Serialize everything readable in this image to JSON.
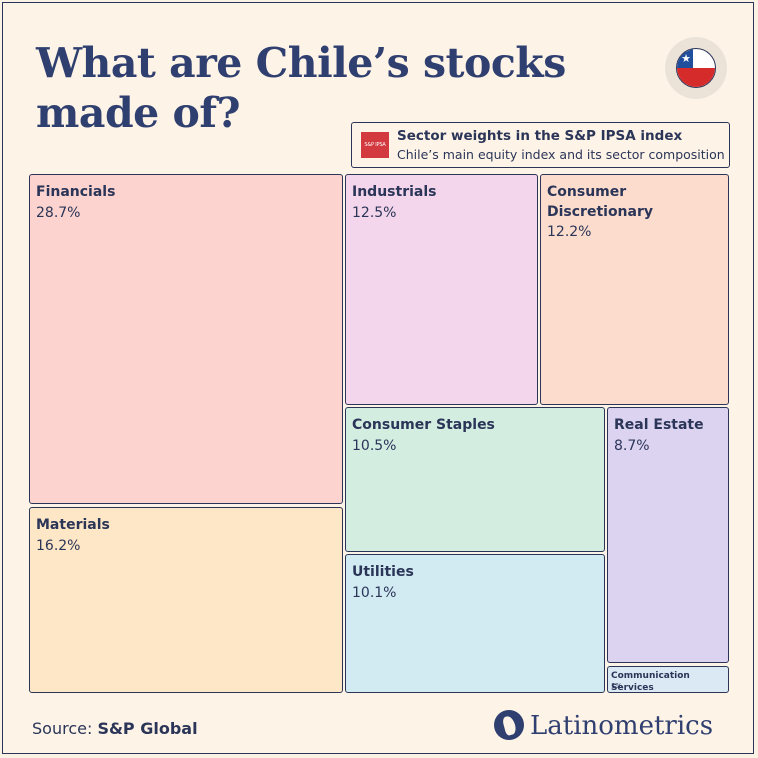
{
  "header": {
    "title": "What are Chile’s stocks made of?",
    "flag": "chile-flag-icon"
  },
  "legend": {
    "logo_text": "S&P IPSA",
    "title": "Sector weights in the S&P IPSA index",
    "subtitle": "Chile’s main equity index and its sector composition"
  },
  "chart_data": {
    "type": "treemap",
    "title": "What are Chile’s stocks made of?",
    "subtitle": "Sector weights in the S&P IPSA index",
    "unit": "%",
    "categories": [
      "Financials",
      "Materials",
      "Industrials",
      "Consumer Discretionary",
      "Consumer Staples",
      "Utilities",
      "Real Estate",
      "Communication Services"
    ],
    "values": [
      28.7,
      16.2,
      12.5,
      12.2,
      10.5,
      10.1,
      8.7,
      1
    ],
    "labels": [
      "28.7%",
      "16.2%",
      "12.5%",
      "12.2%",
      "10.5%",
      "10.1%",
      "8.7%",
      "1%"
    ],
    "colors": [
      "#fcd3ce",
      "#fee7c6",
      "#f4d6ec",
      "#fcdccc",
      "#d3ede1",
      "#d2ebf3",
      "#dcd3f0",
      "#dbe9f4"
    ]
  },
  "footer": {
    "source_label": "Source:",
    "source_value": "S&P Global",
    "brand": "Latinometrics"
  }
}
